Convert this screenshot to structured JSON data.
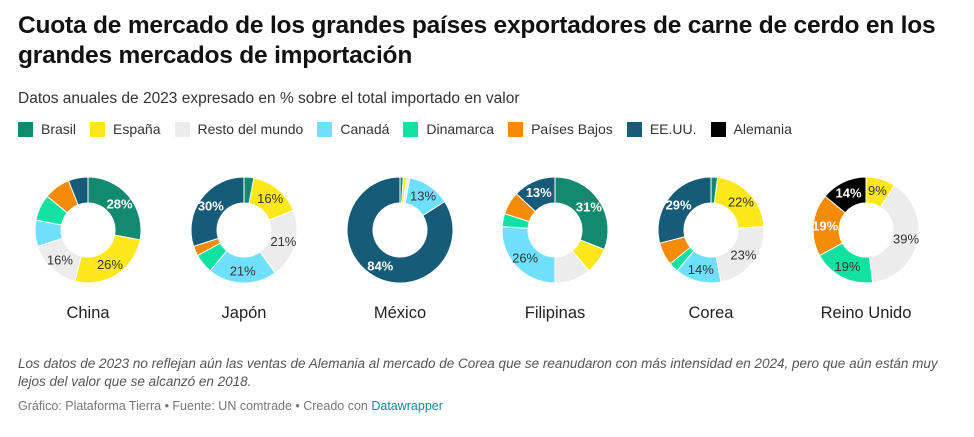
{
  "title": "Cuota de mercado de los grandes países exportadores de carne de cerdo en los grandes mercados de importación",
  "subtitle": "Datos anuales de 2023 expresado en % sobre el total importado en valor",
  "legend": [
    {
      "label": "Brasil",
      "color": "#138a70"
    },
    {
      "label": "España",
      "color": "#fce81a"
    },
    {
      "label": "Resto del mundo",
      "color": "#ececec"
    },
    {
      "label": "Canadá",
      "color": "#6ee0fb"
    },
    {
      "label": "Dinamarca",
      "color": "#12e1a1"
    },
    {
      "label": "Países Bajos",
      "color": "#f48b06"
    },
    {
      "label": "EE.UU.",
      "color": "#165c78"
    },
    {
      "label": "Alemania",
      "color": "#000000"
    }
  ],
  "chart_data": [
    {
      "type": "pie",
      "title": "China",
      "slices": [
        {
          "category": "Brasil",
          "value": 28,
          "label": "28%"
        },
        {
          "category": "España",
          "value": 26,
          "label": "26%"
        },
        {
          "category": "Resto del mundo",
          "value": 16,
          "label": "16%"
        },
        {
          "category": "Canadá",
          "value": 8,
          "label": ""
        },
        {
          "category": "Dinamarca",
          "value": 8,
          "label": ""
        },
        {
          "category": "Países Bajos",
          "value": 8,
          "label": ""
        },
        {
          "category": "EE.UU.",
          "value": 6,
          "label": ""
        }
      ]
    },
    {
      "type": "pie",
      "title": "Japón",
      "slices": [
        {
          "category": "Brasil",
          "value": 3,
          "label": ""
        },
        {
          "category": "España",
          "value": 16,
          "label": "16%"
        },
        {
          "category": "Resto del mundo",
          "value": 21,
          "label": "21%"
        },
        {
          "category": "Canadá",
          "value": 21,
          "label": "21%"
        },
        {
          "category": "Dinamarca",
          "value": 6,
          "label": ""
        },
        {
          "category": "Países Bajos",
          "value": 3,
          "label": ""
        },
        {
          "category": "EE.UU.",
          "value": 30,
          "label": "30%"
        }
      ]
    },
    {
      "type": "pie",
      "title": "México",
      "slices": [
        {
          "category": "Brasil",
          "value": 1,
          "label": ""
        },
        {
          "category": "España",
          "value": 1,
          "label": ""
        },
        {
          "category": "Resto del mundo",
          "value": 1,
          "label": ""
        },
        {
          "category": "Canadá",
          "value": 13,
          "label": "13%"
        },
        {
          "category": "EE.UU.",
          "value": 84,
          "label": "84%"
        }
      ]
    },
    {
      "type": "pie",
      "title": "Filipinas",
      "slices": [
        {
          "category": "Brasil",
          "value": 31,
          "label": "31%"
        },
        {
          "category": "España",
          "value": 8,
          "label": ""
        },
        {
          "category": "Resto del mundo",
          "value": 11,
          "label": ""
        },
        {
          "category": "Canadá",
          "value": 26,
          "label": "26%"
        },
        {
          "category": "Dinamarca",
          "value": 4,
          "label": ""
        },
        {
          "category": "Países Bajos",
          "value": 7,
          "label": ""
        },
        {
          "category": "EE.UU.",
          "value": 13,
          "label": "13%"
        }
      ]
    },
    {
      "type": "pie",
      "title": "Corea",
      "slices": [
        {
          "category": "Brasil",
          "value": 2,
          "label": ""
        },
        {
          "category": "España",
          "value": 22,
          "label": "22%"
        },
        {
          "category": "Resto del mundo",
          "value": 23,
          "label": "23%"
        },
        {
          "category": "Canadá",
          "value": 14,
          "label": "14%"
        },
        {
          "category": "Dinamarca",
          "value": 3,
          "label": ""
        },
        {
          "category": "Países Bajos",
          "value": 7,
          "label": ""
        },
        {
          "category": "EE.UU.",
          "value": 29,
          "label": "29%"
        }
      ]
    },
    {
      "type": "pie",
      "title": "Reino Unido",
      "slices": [
        {
          "category": "España",
          "value": 9,
          "label": "9%"
        },
        {
          "category": "Resto del mundo",
          "value": 39,
          "label": "39%"
        },
        {
          "category": "Dinamarca",
          "value": 19,
          "label": "19%"
        },
        {
          "category": "Países Bajos",
          "value": 19,
          "label": "19%"
        },
        {
          "category": "Alemania",
          "value": 14,
          "label": "14%"
        }
      ]
    }
  ],
  "note": "Los datos de 2023 no reflejan aún las ventas de Alemania al mercado de Corea que se reanudaron con más intensidad en 2024, pero que aún están muy lejos del valor que se alcanzó en 2018.",
  "footer": {
    "text": "Gráfico: Plataforma Tierra • Fuente: UN comtrade • Creado con ",
    "link": "Datawrapper"
  }
}
